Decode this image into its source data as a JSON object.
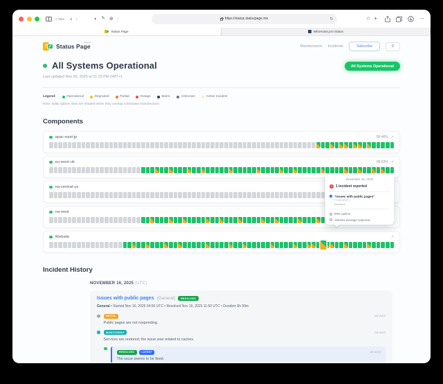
{
  "browser": {
    "tab_count_label": "2 Tabs",
    "url": "https://status.statuspage.me",
    "tabs": [
      {
        "title": "Status Page"
      },
      {
        "title": "WhoHosts.pro Status"
      }
    ]
  },
  "header": {
    "brand": "Status Page",
    "brand_superscript": "hosted",
    "logo_exclaim": "!",
    "logo_check": "✓",
    "nav": {
      "maintenance": "Maintenance",
      "incidents": "Incidents",
      "subscribe": "Subscribe",
      "gear": "⚙"
    }
  },
  "status": {
    "title": "All Systems Operational",
    "last_updated": "Last updated Nov 26, 2025 at 01:23 PM GMT+1",
    "badge": "All Systems Operational"
  },
  "legend": {
    "label": "Legend:",
    "items": [
      {
        "label": "Operational",
        "color": "#22c55e"
      },
      {
        "label": "Degraded",
        "color": "#f5c518"
      },
      {
        "label": "Partial",
        "color": "#f97316"
      },
      {
        "label": "Outage",
        "color": "#ef4444"
      },
      {
        "label": "Maint.",
        "color": "#1e3a5f"
      },
      {
        "label": "Unknown",
        "color": "#6b7280"
      },
      {
        "label": "Active Incident",
        "color": "#faeec9"
      }
    ]
  },
  "note": "Note: Daily uptime ticks are shaded when they overlap scheduled maintenance.",
  "components": {
    "title": "Components",
    "tick_colors": {
      "operational": "#1fc16b",
      "maintenance_shaded": "#f7a823",
      "unknown": "#d3d7dc"
    },
    "rows": [
      {
        "name": "apac-east-jp",
        "uptime": "99.46%",
        "ticks": "uuuuuuuuuuuuuuuuuuuuuuuuuuuuuuuuuuuuuuuuuuuuuuuuuuuuuuuuuumoomommommomooooo"
      },
      {
        "name": "eu-west-uk",
        "uptime": "99.63%",
        "ticks": "uuuuuuuuuuuuuuuuuuuuooomoomooomoomooooomooooomoooomoomooooomoooomoomoomomoo"
      },
      {
        "name": "na-central-us",
        "uptime": "",
        "ticks": "uuuuuuuuuuuuuuuuuuuuuuuuuuuuuuuuuuuuuuuuuuuuuuuuuuuuuuuuuuuuuuuuuuuuuuuuooo"
      },
      {
        "name": "na-west",
        "uptime": "",
        "ticks": "uuuuuuuuuuuuuuuuuuuuoomooomoomoooomoomooomoooomoomoooomooomoomoooomoomooooo"
      },
      {
        "name": "Website",
        "uptime": "",
        "ticks": "uuuuuuuuuuuuuuuuoomoomooomoomooooomoooomoomooooomoooomoommohmmoomoooomooooo"
      }
    ],
    "expand_icon": "↗"
  },
  "tooltip": {
    "date": "November 16, 2025",
    "alert_glyph": "!",
    "incident_count": "1 incident reported",
    "incident_name": "\"Issues with public pages\"",
    "incident_scope": "(\"General\")",
    "incident_status": "Resolved",
    "uptime": "99% uptime",
    "response": "1534ms average response"
  },
  "incident_history": {
    "title": "Incident History",
    "date_header": "NOVEMBER 16, 2025",
    "date_suffix": "(UTC)",
    "incident": {
      "title": "Issues with public pages",
      "scope": "(General)",
      "badge": "RESOLVED",
      "meta_prefix": "General",
      "meta_rest": " • Started Nov 16, 2025 04:50 UTC • Resolved Nov 16, 2025 11:50 UTC • Duration 6h 59m",
      "updates": [
        {
          "badges": [
            "INITIAL"
          ],
          "badge_classes": [
            "initial"
          ],
          "dot_color": "#9ca3af",
          "time": "1W AGO",
          "text": "Public pages are not responding.",
          "highlighted": false
        },
        {
          "badges": [
            "MONITORING"
          ],
          "badge_classes": [
            "monitoring"
          ],
          "dot_color": "#14b8a6",
          "time": "1W AGO",
          "text": "Services are restored; the issue was related to caches.",
          "highlighted": false
        },
        {
          "badges": [
            "RESOLVED",
            "LATEST"
          ],
          "badge_classes": [
            "resolved",
            "latest"
          ],
          "dot_color": "#22c55e",
          "time": "1W AGO",
          "text": "The issue seems to be fixed.",
          "highlighted": true
        }
      ]
    }
  }
}
